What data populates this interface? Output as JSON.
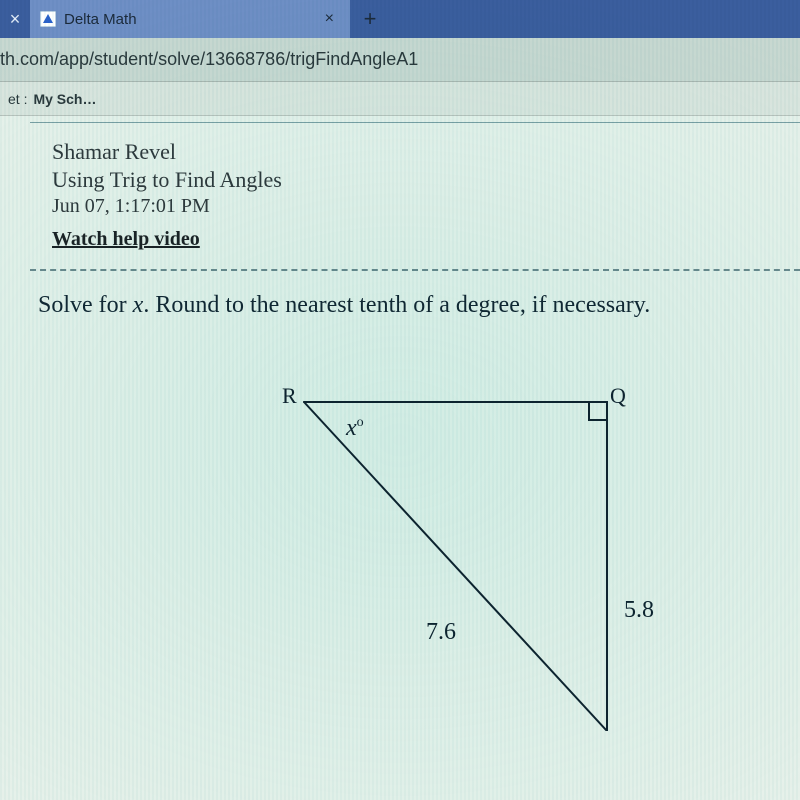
{
  "colors": {
    "tab_strip_bg": "#3b5e9e",
    "tab_active_bg": "#6f8fc5",
    "addr_bg": "#c9d8d1",
    "bookmarks_bg": "#dbe5de",
    "page_bg": "#e8f1ea",
    "text_dark": "#102834",
    "line": "#0d2430"
  },
  "browser": {
    "tab_title": "Delta Math",
    "close_glyph": "×",
    "plus_glyph": "+",
    "url_fragment": "th.com/app/student/solve/13668786/trigFindAngleA1",
    "bookmark_prefix": "et :",
    "bookmark_label": "My Sch…"
  },
  "header": {
    "student": "Shamar Revel",
    "assignment": "Using Trig to Find Angles",
    "timestamp": "Jun 07, 1:17:01 PM",
    "help_link": "Watch help video"
  },
  "problem": {
    "prompt_pre": "Solve for ",
    "variable": "x",
    "prompt_post": ". Round to the nearest tenth of a degree, if necessary."
  },
  "triangle": {
    "vertex_top_left": "R",
    "vertex_top_right": "Q",
    "angle_label": "x°",
    "hypotenuse": "7.6",
    "opposite": "5.8",
    "R": [
      204,
      11
    ],
    "Q": [
      507,
      11
    ],
    "P": [
      507,
      340
    ],
    "right_angle_box": 18,
    "stroke": "#0d2430",
    "stroke_width": 2
  }
}
